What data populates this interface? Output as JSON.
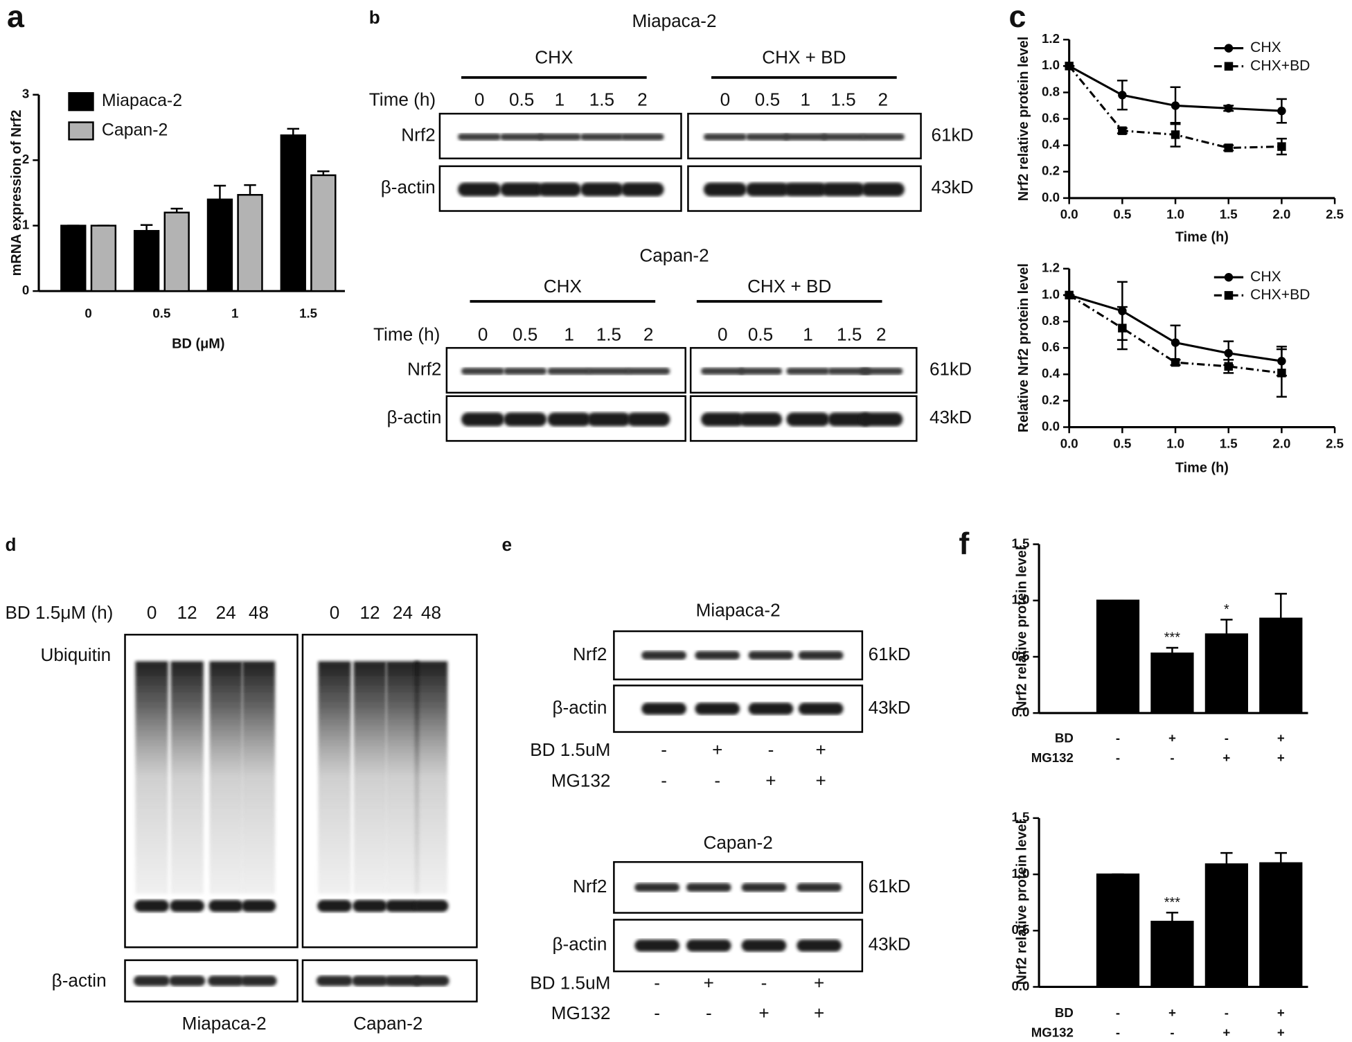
{
  "chart_data": [
    {
      "panel": "a",
      "type": "bar",
      "y_label": "mRNA expression of Nrf2",
      "x_label": "BD (μM)",
      "categories": [
        "0",
        "0.5",
        "1",
        "1.5"
      ],
      "series": [
        {
          "name": "Miapaca-2",
          "color": "#000000",
          "values": [
            1,
            0.92,
            1.4,
            2.38
          ],
          "errors": [
            0,
            0.09,
            0.21,
            0.1
          ]
        },
        {
          "name": "Capan-2",
          "color": "#b3b3b3",
          "values": [
            1,
            1.2,
            1.47,
            1.77
          ],
          "errors": [
            0,
            0.06,
            0.15,
            0.06
          ]
        }
      ],
      "ylim": [
        0,
        3
      ],
      "yticks": [
        0,
        1,
        2,
        3
      ],
      "legend": "upper left"
    },
    {
      "panel": "c",
      "type": "line",
      "y_label": "Nrf2 relative protein level",
      "x_label": "Time (h)",
      "x": [
        0,
        0.5,
        1,
        1.5,
        2
      ],
      "series": [
        {
          "name": "CHX",
          "color": "#000000",
          "marker": "circle",
          "line_style": "solid",
          "values": [
            1,
            0.78,
            0.7,
            0.68,
            0.66
          ],
          "errors": [
            0,
            0.11,
            0.14,
            0.02,
            0.09
          ]
        },
        {
          "name": "CHX+BD",
          "color": "#000000",
          "marker": "square",
          "line_style": "dash-dot",
          "values": [
            1,
            0.51,
            0.48,
            0.38,
            0.39
          ],
          "errors": [
            0,
            0.02,
            0.09,
            0.02,
            0.06
          ]
        }
      ],
      "xlim": [
        0,
        2.5
      ],
      "xticks": [
        {
          "value": 0,
          "label": "0.0"
        },
        0.5,
        {
          "value": 1,
          "label": "1.0"
        },
        1.5,
        {
          "value": 2,
          "label": "2.0"
        },
        2.5
      ],
      "ylim": [
        0,
        1.2
      ],
      "yticks": [
        {
          "value": 0,
          "label": "0.0"
        },
        0.2,
        0.4,
        0.6,
        0.8,
        {
          "value": 1,
          "label": "1.0"
        },
        1.2
      ],
      "legend": "upper right"
    },
    {
      "type": "line",
      "y_label": "Relative Nrf2 protein level",
      "x_label": "Time (h)",
      "x": [
        0,
        0.5,
        1,
        1.5,
        2
      ],
      "series": [
        {
          "name": "CHX",
          "color": "#000000",
          "marker": "circle",
          "line_style": "solid",
          "values": [
            1,
            0.88,
            0.64,
            0.56,
            0.5
          ],
          "errors": [
            0,
            0.22,
            0.13,
            0.09,
            0.11
          ]
        },
        {
          "name": "CHX+BD",
          "color": "#000000",
          "marker": "square",
          "line_style": "dash-dot",
          "values": [
            1,
            0.75,
            0.49,
            0.46,
            0.41
          ],
          "errors": [
            0,
            0.16,
            0.02,
            0.05,
            0.18
          ]
        }
      ],
      "xlim": [
        0,
        2.5
      ],
      "xticks": [
        {
          "value": 0,
          "label": "0.0"
        },
        0.5,
        {
          "value": 1,
          "label": "1.0"
        },
        1.5,
        {
          "value": 2,
          "label": "2.0"
        },
        2.5
      ],
      "ylim": [
        0,
        1.2
      ],
      "yticks": [
        {
          "value": 0,
          "label": "0.0"
        },
        0.2,
        0.4,
        0.6,
        0.8,
        {
          "value": 1,
          "label": "1.0"
        },
        1.2
      ],
      "legend": "upper right"
    },
    {
      "panel": "f",
      "type": "bar",
      "y_label": "Nrf2 relative protein level",
      "color": "#000000",
      "values": [
        1,
        0.53,
        0.7,
        0.84
      ],
      "errors": [
        0,
        0.05,
        0.13,
        0.22
      ],
      "annotations": [
        null,
        "***",
        "*",
        null
      ],
      "rows": [
        {
          "label": "BD",
          "signs": [
            "-",
            "+",
            "-",
            "+"
          ]
        },
        {
          "label": "MG132",
          "signs": [
            "-",
            "-",
            "+",
            "+"
          ]
        }
      ],
      "ylim": [
        0,
        1.5
      ],
      "yticks": [
        {
          "value": 0,
          "label": "0.0"
        },
        0.5,
        {
          "value": 1,
          "label": "1.0"
        },
        1.5
      ]
    },
    {
      "type": "bar",
      "y_label": "Nrf2 relative protein level",
      "color": "#000000",
      "values": [
        1,
        0.58,
        1.09,
        1.1
      ],
      "errors": [
        0,
        0.08,
        0.1,
        0.09
      ],
      "annotations": [
        null,
        "***",
        null,
        null
      ],
      "rows": [
        {
          "label": "BD",
          "signs": [
            "-",
            "+",
            "-",
            "+"
          ]
        },
        {
          "label": "MG132",
          "signs": [
            "-",
            "-",
            "+",
            "+"
          ]
        }
      ],
      "ylim": [
        0,
        1.5
      ],
      "yticks": [
        {
          "value": 0,
          "label": "0.0"
        },
        0.5,
        {
          "value": 1,
          "label": "1.0"
        },
        1.5
      ]
    }
  ],
  "blots": {
    "b": {
      "panel": "b",
      "blocks": [
        {
          "title": "Miapaca-2",
          "groups": [
            "CHX",
            "CHX + BD"
          ],
          "time_label": "Time (h)",
          "times": [
            "0",
            "0.5",
            "1",
            "1.5",
            "2"
          ],
          "rows": [
            {
              "name": "Nrf2",
              "size": "61kD"
            },
            {
              "name": "β-actin",
              "size": "43kD"
            }
          ]
        },
        {
          "title": "Capan-2",
          "groups": [
            "CHX",
            "CHX + BD"
          ],
          "time_label": "Time (h)",
          "times": [
            "0",
            "0.5",
            "1",
            "1.5",
            "2"
          ],
          "rows": [
            {
              "name": "Nrf2",
              "size": "61kD"
            },
            {
              "name": "β-actin",
              "size": "43kD"
            }
          ]
        }
      ]
    },
    "d": {
      "panel": "d",
      "time_label": "BD 1.5μM (h)",
      "times": [
        "0",
        "12",
        "24",
        "48"
      ],
      "rows": [
        "Ubiquitin",
        "β-actin"
      ],
      "cells": [
        "Miapaca-2",
        "Capan-2"
      ]
    },
    "e": {
      "panel": "e",
      "blocks": [
        {
          "title": "Miapaca-2",
          "rows": [
            {
              "name": "Nrf2",
              "size": "61kD"
            },
            {
              "name": "β-actin",
              "size": "43kD"
            }
          ],
          "treatments": [
            {
              "label": "BD 1.5uM",
              "signs": [
                "-",
                "+",
                "-",
                "+"
              ]
            },
            {
              "label": "MG132",
              "signs": [
                "-",
                "-",
                "+",
                "+"
              ]
            }
          ]
        },
        {
          "title": "Capan-2",
          "rows": [
            {
              "name": "Nrf2",
              "size": "61kD"
            },
            {
              "name": "β-actin",
              "size": "43kD"
            }
          ],
          "treatments": [
            {
              "label": "BD 1.5uM",
              "signs": [
                "-",
                "+",
                "-",
                "+"
              ]
            },
            {
              "label": "MG132",
              "signs": [
                "-",
                "-",
                "+",
                "+"
              ]
            }
          ]
        }
      ]
    }
  }
}
